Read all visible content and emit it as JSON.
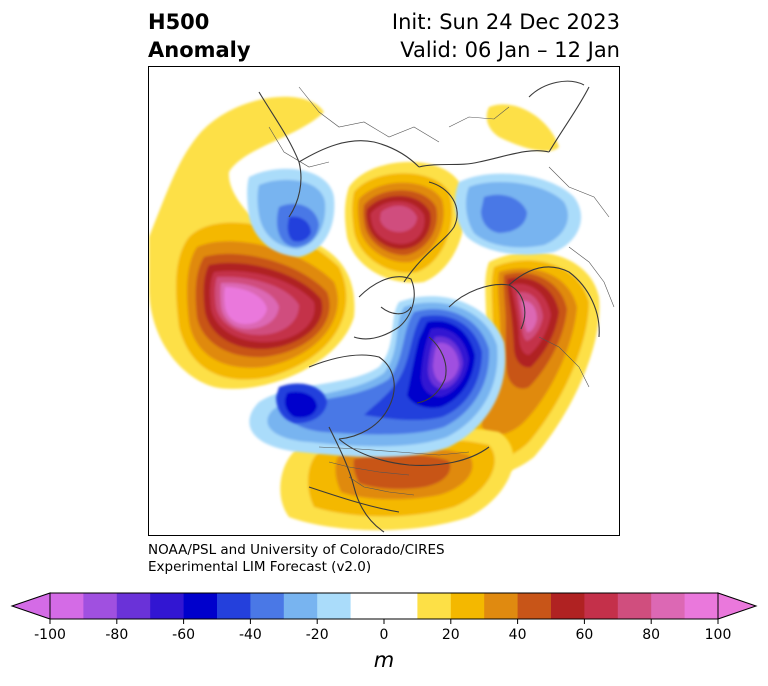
{
  "title": {
    "left_line1": "H500",
    "left_line2": "Anomaly",
    "right_line1": "Init: Sun 24 Dec 2023",
    "right_line2": "Valid: 06 Jan – 12 Jan"
  },
  "credit": {
    "line1": "NOAA/PSL and University of Colorado/CIRES",
    "line2": "Experimental LIM Forecast (v2.0)"
  },
  "colorbar": {
    "units": "m",
    "ticks": [
      "-100",
      "-80",
      "-60",
      "-40",
      "-20",
      "0",
      "20",
      "40",
      "60",
      "80",
      "100"
    ],
    "colors": [
      "#d46be6",
      "#a050e0",
      "#6a32d8",
      "#3216d2",
      "#0000cc",
      "#2440dc",
      "#4a78e6",
      "#78b4f0",
      "#aadcfa",
      "#ffffff",
      "#ffffff",
      "#fde046",
      "#f4b800",
      "#e08a10",
      "#c85518",
      "#b02222",
      "#c4304a",
      "#d04e7e",
      "#dc68b4",
      "#ea78dc"
    ]
  }
}
